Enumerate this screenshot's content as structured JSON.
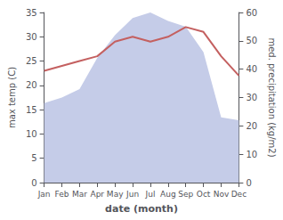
{
  "chart_data": {
    "type": "line",
    "xlabel": "date (month)",
    "ylabel": "max temp (C)",
    "y2label": "med. precipitation (kg/m2)",
    "categories": [
      "Jan",
      "Feb",
      "Mar",
      "Apr",
      "May",
      "Jun",
      "Jul",
      "Aug",
      "Sep",
      "Oct",
      "Nov",
      "Dec"
    ],
    "series": [
      {
        "type": "area",
        "axis": "y2",
        "color": "#c5cce8",
        "values": [
          28,
          30,
          33,
          44,
          52,
          58,
          60,
          57,
          55,
          46,
          23,
          22
        ]
      },
      {
        "type": "line",
        "color": "#c46060",
        "values": [
          23,
          24,
          25,
          26,
          29,
          30,
          29,
          30,
          32,
          31,
          26,
          22
        ]
      }
    ],
    "ylim": [
      0,
      35
    ],
    "yticks": [
      0,
      5,
      10,
      15,
      20,
      25,
      30,
      35
    ],
    "y2lim": [
      0,
      60
    ],
    "y2ticks": [
      0,
      10,
      20,
      30,
      40,
      50,
      60
    ],
    "grid": false
  }
}
